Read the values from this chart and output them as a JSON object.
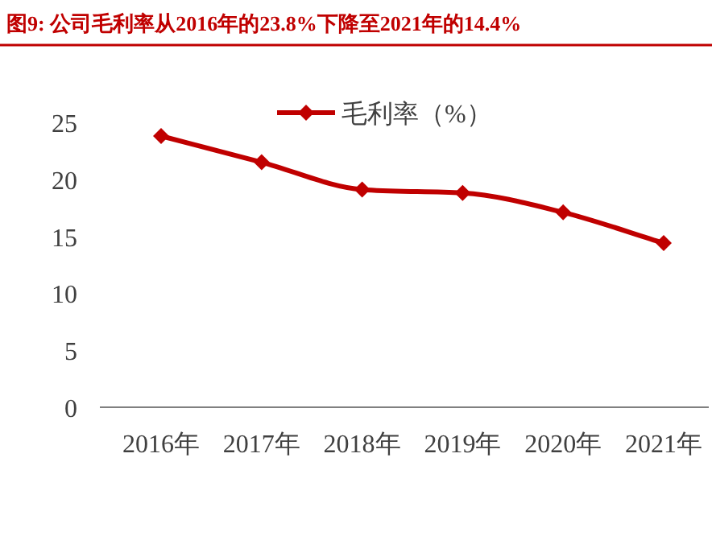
{
  "chart_data": {
    "type": "line",
    "title": "图9:  公司毛利率从2016年的23.8%下降至2021年的14.4%",
    "categories": [
      "2016年",
      "2017年",
      "2018年",
      "2019年",
      "2020年",
      "2021年"
    ],
    "series": [
      {
        "name": "毛利率（%）",
        "color": "#c00000",
        "values": [
          23.8,
          21.5,
          19.1,
          18.8,
          17.1,
          14.4
        ]
      }
    ],
    "ylim": [
      0,
      25
    ],
    "yticks": [
      0,
      5,
      10,
      15,
      20,
      25
    ],
    "legend": "top",
    "marker": "diamond",
    "grid": false
  }
}
